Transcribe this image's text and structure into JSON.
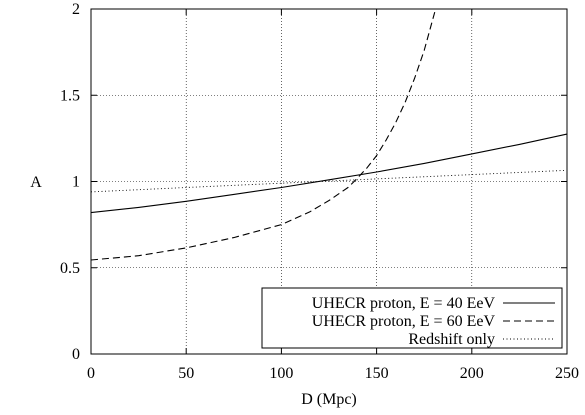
{
  "chart_data": {
    "type": "line",
    "title": "",
    "xlabel": "D (Mpc)",
    "ylabel": "A",
    "xlim": [
      0,
      250
    ],
    "ylim": [
      0,
      2
    ],
    "x_ticks": [
      0,
      50,
      100,
      150,
      200,
      250
    ],
    "y_ticks": [
      0,
      0.5,
      1,
      1.5,
      2
    ],
    "x_tick_labels": [
      "0",
      "50",
      "100",
      "150",
      "200",
      "250"
    ],
    "y_tick_labels": [
      "0",
      "0.5",
      "1",
      "1.5",
      "2"
    ],
    "grid": true,
    "legend_position": "bottom-right",
    "series": [
      {
        "name": "UHECR proton, E = 40 EeV",
        "style": "solid",
        "x": [
          0,
          25,
          50,
          75,
          100,
          125,
          150,
          175,
          200,
          225,
          250
        ],
        "y": [
          0.82,
          0.85,
          0.885,
          0.925,
          0.965,
          1.01,
          1.055,
          1.105,
          1.16,
          1.215,
          1.275
        ]
      },
      {
        "name": "UHECR proton, E = 60 EeV",
        "style": "dashed",
        "x": [
          0,
          25,
          50,
          75,
          100,
          115,
          125,
          135,
          140,
          145,
          150,
          155,
          160,
          165,
          170,
          175,
          178,
          181
        ],
        "y": [
          0.545,
          0.57,
          0.615,
          0.675,
          0.75,
          0.825,
          0.89,
          0.965,
          1.02,
          1.08,
          1.15,
          1.24,
          1.34,
          1.46,
          1.6,
          1.76,
          1.88,
          2.0
        ]
      },
      {
        "name": "Redshift only",
        "style": "dotted",
        "x": [
          0,
          50,
          100,
          150,
          200,
          250
        ],
        "y": [
          0.94,
          0.965,
          0.99,
          1.015,
          1.04,
          1.065
        ]
      }
    ]
  }
}
